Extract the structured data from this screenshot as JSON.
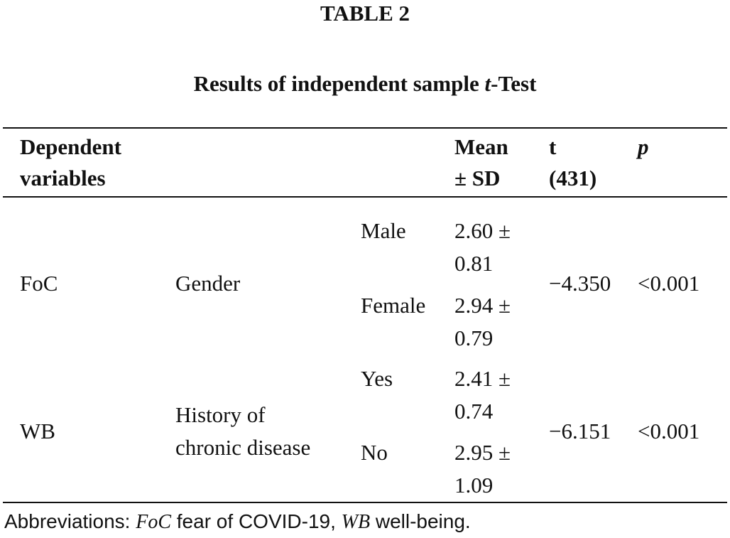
{
  "table_label": "TABLE 2",
  "caption": {
    "prefix": "Results of independent sample ",
    "italic": "t",
    "suffix": "-Test"
  },
  "header": {
    "dependent_line1": "Dependent",
    "dependent_line2": "variables",
    "mean_line1": "Mean",
    "mean_line2": "± SD",
    "t_line1": "t",
    "t_line2": "(431)",
    "p": "p"
  },
  "rows": [
    {
      "variable": "FoC",
      "grouping": "Gender",
      "grouping_line2": "",
      "levels": [
        {
          "name": "Male",
          "mean_sd_line1": "2.60 ±",
          "mean_sd_line2": "0.81"
        },
        {
          "name": "Female",
          "mean_sd_line1": "2.94 ±",
          "mean_sd_line2": "0.79"
        }
      ],
      "t": "−4.350",
      "p": "<0.001"
    },
    {
      "variable": "WB",
      "grouping": "History of",
      "grouping_line2": "chronic disease",
      "levels": [
        {
          "name": "Yes",
          "mean_sd_line1": "2.41 ±",
          "mean_sd_line2": "0.74"
        },
        {
          "name": "No",
          "mean_sd_line1": "2.95 ±",
          "mean_sd_line2": "1.09"
        }
      ],
      "t": "−6.151",
      "p": "<0.001"
    }
  ],
  "footnote": {
    "prefix": "Abbreviations: ",
    "abbr1": "FoC",
    "def1": " fear of COVID-19, ",
    "abbr2": "WB",
    "def2": " well-being."
  }
}
